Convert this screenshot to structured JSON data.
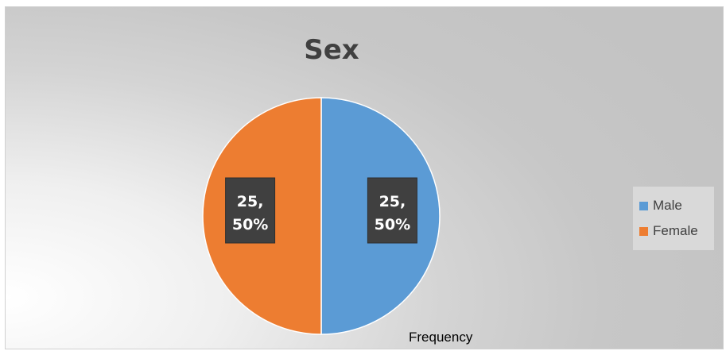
{
  "chart_data": {
    "type": "pie",
    "title": "Sex",
    "categories": [
      "Male",
      "Female"
    ],
    "values": [
      25,
      25
    ],
    "percentages": [
      "50%",
      "50%"
    ],
    "data_labels": [
      {
        "line1": "25,",
        "line2": "50%"
      },
      {
        "line1": "25,",
        "line2": "50%"
      }
    ],
    "colors": [
      "#5b9bd5",
      "#ed7d31"
    ],
    "legend_position": "right",
    "footer_label": "Frequency"
  }
}
